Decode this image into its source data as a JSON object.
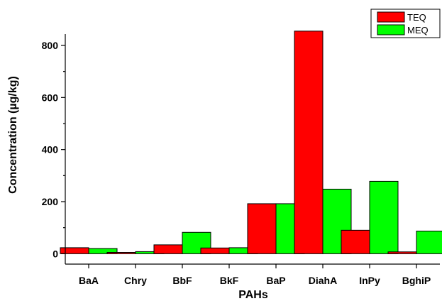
{
  "chart_data": {
    "type": "bar",
    "xlabel": "PAHs",
    "ylabel": "Concentration (µg/kg)",
    "categories": [
      "BaA",
      "Chry",
      "BbF",
      "BkF",
      "BaP",
      "DiahA",
      "InPy",
      "BghiP"
    ],
    "series": [
      {
        "name": "TEQ",
        "color": "#ff0000",
        "values": [
          23,
          5,
          34,
          22,
          192,
          855,
          90,
          7
        ]
      },
      {
        "name": "MEQ",
        "color": "#00ff00",
        "values": [
          20,
          8,
          82,
          23,
          192,
          248,
          278,
          87
        ]
      }
    ],
    "ylim": [
      -40,
      920
    ],
    "yticks": [
      0,
      200,
      400,
      600,
      800
    ],
    "legend_position": "top-right",
    "grid": false
  }
}
